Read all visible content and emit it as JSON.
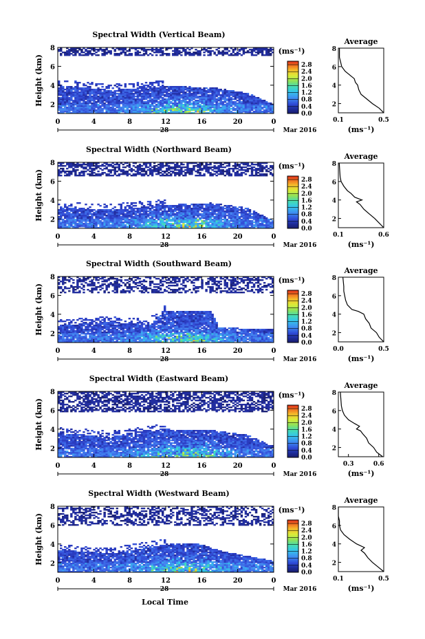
{
  "figure": {
    "xlabel": "Local Time",
    "date_label": "Mar 2016",
    "day_label": "28",
    "ylabel": "Height (km)",
    "colorbar_unit": "(ms⁻¹)",
    "avg_title": "Average",
    "avg_xlabel": "(ms⁻¹)"
  },
  "chart_data": [
    {
      "type": "heatmap",
      "title": "Spectral Width (Vertical Beam)",
      "xlabel": "Local Time",
      "ylabel": "Height (km)",
      "x_ticks": [
        "0",
        "4",
        "8",
        "12",
        "16",
        "20",
        "0"
      ],
      "y_ticks": [
        "2",
        "4",
        "6",
        "8"
      ],
      "xlim": [
        0,
        24
      ],
      "ylim": [
        1,
        8
      ],
      "colorbar": {
        "ticks": [
          "0.0",
          "0.4",
          "0.8",
          "1.2",
          "1.6",
          "2.0",
          "2.4",
          "2.8"
        ],
        "range": [
          0,
          3.0
        ]
      },
      "avg_profile": {
        "title": "Average",
        "xticks": [
          "0.1",
          "0.5"
        ],
        "xlim": [
          0.1,
          0.5
        ],
        "yticks": [
          "2",
          "4",
          "6",
          "8"
        ],
        "ylim": [
          1,
          8
        ],
        "width": [
          0.5,
          0.46,
          0.4,
          0.35,
          0.3,
          0.28,
          0.27,
          0.25,
          0.24,
          0.21,
          0.16,
          0.13,
          0.12,
          0.11,
          0.11
        ],
        "height": [
          1.0,
          1.5,
          2.0,
          2.5,
          3.0,
          3.5,
          4.0,
          4.3,
          4.7,
          5.0,
          5.5,
          6.0,
          6.5,
          7.0,
          8.0
        ]
      }
    },
    {
      "type": "heatmap",
      "title": "Spectral Width (Northward Beam)",
      "xlabel": "Local Time",
      "ylabel": "Height (km)",
      "x_ticks": [
        "0",
        "4",
        "8",
        "12",
        "16",
        "20",
        "0"
      ],
      "y_ticks": [
        "2",
        "4",
        "6",
        "8"
      ],
      "xlim": [
        0,
        24
      ],
      "ylim": [
        1,
        8
      ],
      "colorbar": {
        "ticks": [
          "0.0",
          "0.4",
          "0.8",
          "1.2",
          "1.6",
          "2.0",
          "2.4",
          "2.8"
        ],
        "range": [
          0,
          3.0
        ]
      },
      "avg_profile": {
        "title": "Average",
        "xticks": [
          "0.1",
          "0.6"
        ],
        "xlim": [
          0.1,
          0.6
        ],
        "yticks": [
          "2",
          "4",
          "6",
          "8"
        ],
        "ylim": [
          1,
          8
        ],
        "width": [
          0.6,
          0.55,
          0.5,
          0.44,
          0.38,
          0.34,
          0.3,
          0.36,
          0.28,
          0.24,
          0.2,
          0.16,
          0.13,
          0.12,
          0.11
        ],
        "height": [
          1.0,
          1.5,
          2.0,
          2.5,
          3.0,
          3.5,
          3.8,
          4.0,
          4.3,
          4.7,
          5.0,
          5.5,
          6.0,
          6.5,
          8.0
        ]
      }
    },
    {
      "type": "heatmap",
      "title": "Spectral Width (Southward Beam)",
      "xlabel": "Local Time",
      "ylabel": "Height (km)",
      "x_ticks": [
        "0",
        "4",
        "8",
        "12",
        "16",
        "20",
        "0"
      ],
      "y_ticks": [
        "2",
        "4",
        "6",
        "8"
      ],
      "xlim": [
        0,
        24
      ],
      "ylim": [
        1,
        8
      ],
      "colorbar": {
        "ticks": [
          "0.0",
          "0.4",
          "0.8",
          "1.2",
          "1.6",
          "2.0",
          "2.4",
          "2.8"
        ],
        "range": [
          0,
          3.0
        ]
      },
      "avg_profile": {
        "title": "Average",
        "xticks": [
          "0.0",
          "0.5"
        ],
        "xlim": [
          0.0,
          0.5
        ],
        "yticks": [
          "2",
          "4",
          "6",
          "8"
        ],
        "ylim": [
          1,
          8
        ],
        "width": [
          0.5,
          0.45,
          0.42,
          0.36,
          0.34,
          0.3,
          0.28,
          0.22,
          0.15,
          0.1,
          0.08,
          0.07,
          0.06,
          0.06,
          0.05
        ],
        "height": [
          1.0,
          1.5,
          2.0,
          2.5,
          3.0,
          3.5,
          4.0,
          4.3,
          4.5,
          5.0,
          5.5,
          6.0,
          6.5,
          7.0,
          8.0
        ]
      }
    },
    {
      "type": "heatmap",
      "title": "Spectral Width (Eastward Beam)",
      "xlabel": "Local Time",
      "ylabel": "Height (km)",
      "x_ticks": [
        "0",
        "4",
        "8",
        "12",
        "16",
        "20",
        "0"
      ],
      "y_ticks": [
        "2",
        "4",
        "6",
        "8"
      ],
      "xlim": [
        0,
        24
      ],
      "ylim": [
        1,
        8
      ],
      "colorbar": {
        "ticks": [
          "0.0",
          "0.4",
          "0.8",
          "1.2",
          "1.6",
          "2.0",
          "2.4",
          "2.8"
        ],
        "range": [
          0,
          3.0
        ]
      },
      "avg_profile": {
        "title": "Average",
        "xticks": [
          "0.3",
          "0.6"
        ],
        "xlim": [
          0.2,
          0.65
        ],
        "yticks": [
          "2",
          "4",
          "6",
          "8"
        ],
        "ylim": [
          1,
          8
        ],
        "width": [
          0.64,
          0.58,
          0.55,
          0.5,
          0.48,
          0.44,
          0.42,
          0.38,
          0.41,
          0.36,
          0.3,
          0.26,
          0.24,
          0.23,
          0.22
        ],
        "height": [
          1.0,
          1.5,
          2.0,
          2.5,
          3.0,
          3.5,
          3.8,
          4.0,
          4.3,
          4.6,
          5.0,
          5.5,
          6.0,
          6.5,
          8.0
        ]
      }
    },
    {
      "type": "heatmap",
      "title": "Spectral Width (Westward Beam)",
      "xlabel": "Local Time",
      "ylabel": "Height (km)",
      "x_ticks": [
        "0",
        "4",
        "8",
        "12",
        "16",
        "20",
        "0"
      ],
      "y_ticks": [
        "2",
        "4",
        "6",
        "8"
      ],
      "xlim": [
        0,
        24
      ],
      "ylim": [
        1,
        8
      ],
      "colorbar": {
        "ticks": [
          "0.0",
          "0.4",
          "0.8",
          "1.2",
          "1.6",
          "2.0",
          "2.4",
          "2.8"
        ],
        "range": [
          0,
          3.0
        ]
      },
      "avg_profile": {
        "title": "Average",
        "xticks": [
          "0.1",
          "0.5"
        ],
        "xlim": [
          0.1,
          0.5
        ],
        "yticks": [
          "2",
          "4",
          "6",
          "8"
        ],
        "ylim": [
          1,
          8
        ],
        "width": [
          0.5,
          0.45,
          0.4,
          0.36,
          0.33,
          0.3,
          0.33,
          0.26,
          0.2,
          0.15,
          0.12,
          0.11,
          0.11,
          0.1,
          0.1
        ],
        "height": [
          1.0,
          1.5,
          2.0,
          2.5,
          3.0,
          3.3,
          3.6,
          4.0,
          4.5,
          5.0,
          5.5,
          6.0,
          6.5,
          7.0,
          8.0
        ]
      }
    }
  ]
}
